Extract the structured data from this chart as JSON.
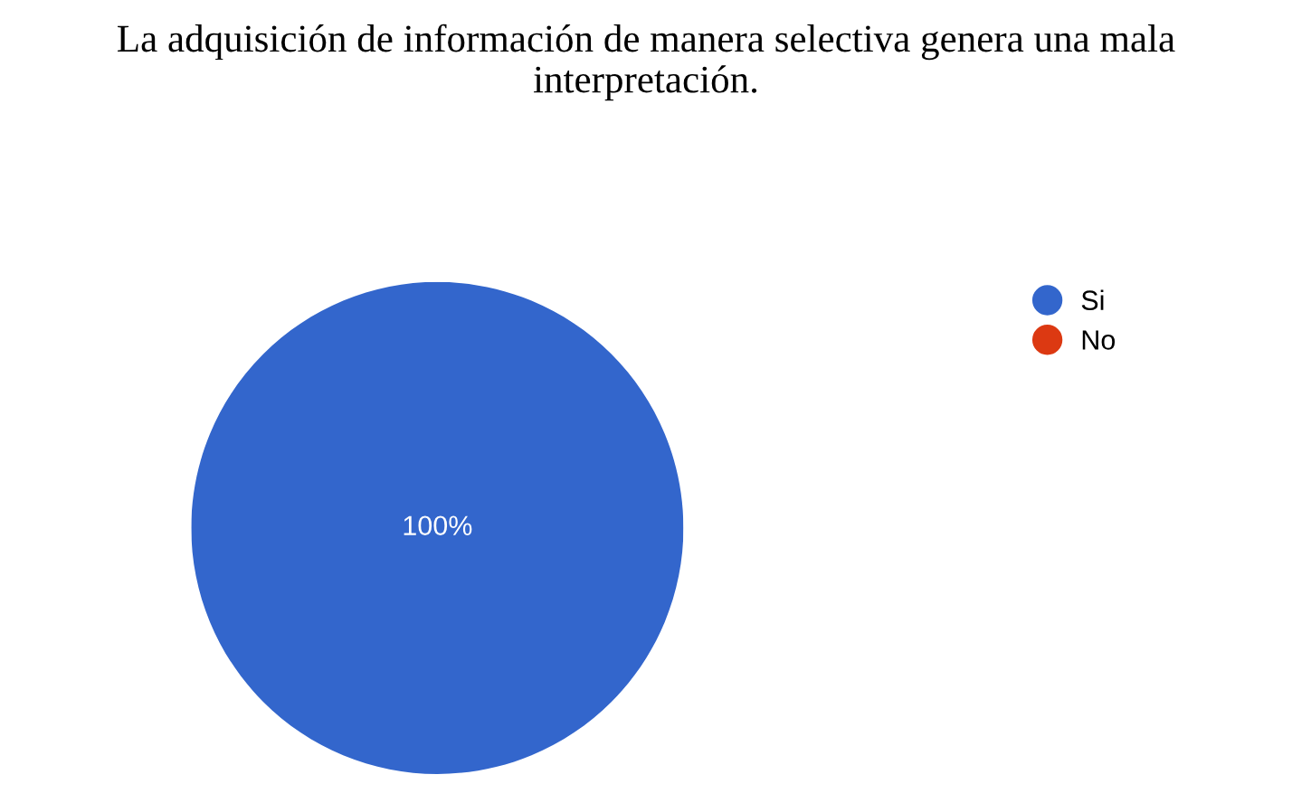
{
  "chart_data": {
    "type": "pie",
    "title": "La adquisición de información de manera selectiva genera una mala interpretación.",
    "categories": [
      "Si",
      "No"
    ],
    "values": [
      100,
      0
    ],
    "colors": [
      "#3366cc",
      "#dc3912"
    ],
    "value_labels": [
      "100%",
      null
    ],
    "legend": "top right"
  }
}
